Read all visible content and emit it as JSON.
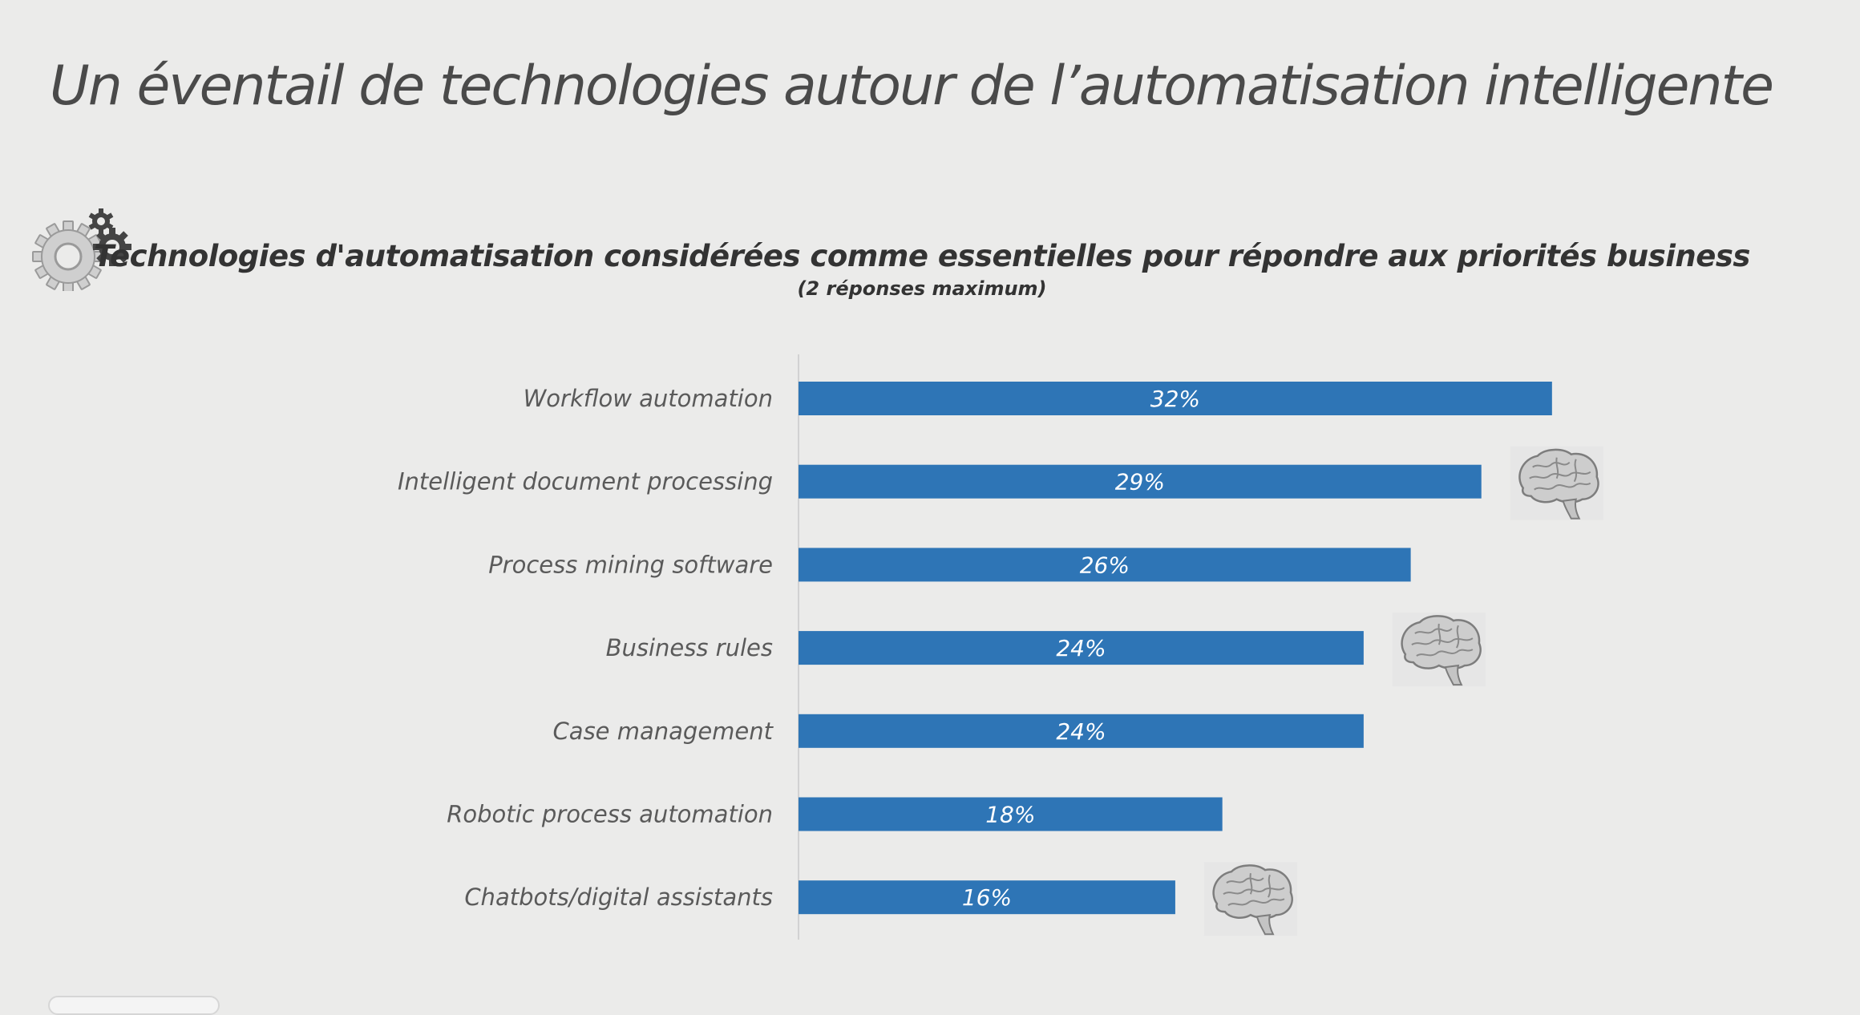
{
  "slide": {
    "title": "Un éventail de technologies autour de l’automatisation intelligente"
  },
  "chart_data": {
    "type": "bar",
    "orientation": "horizontal",
    "title": "Technologies d'automatisation considérées comme essentielles pour répondre aux priorités business",
    "subtitle": "(2 réponses maximum)",
    "categories": [
      "Workflow automation",
      "Intelligent document processing",
      "Process mining software",
      "Business rules",
      "Case management",
      "Robotic process automation",
      "Chatbots/digital assistants"
    ],
    "values": [
      32,
      29,
      26,
      24,
      24,
      18,
      16
    ],
    "value_labels": [
      "32%",
      "29%",
      "26%",
      "24%",
      "24%",
      "18%",
      "16%"
    ],
    "unit": "%",
    "bar_color": "#2e75b6",
    "grid": false,
    "legend": "none",
    "brain_icon_rows": [
      1,
      3,
      6
    ]
  },
  "icons": {
    "header": "gears-icon",
    "row_marker": "brain-icon"
  }
}
